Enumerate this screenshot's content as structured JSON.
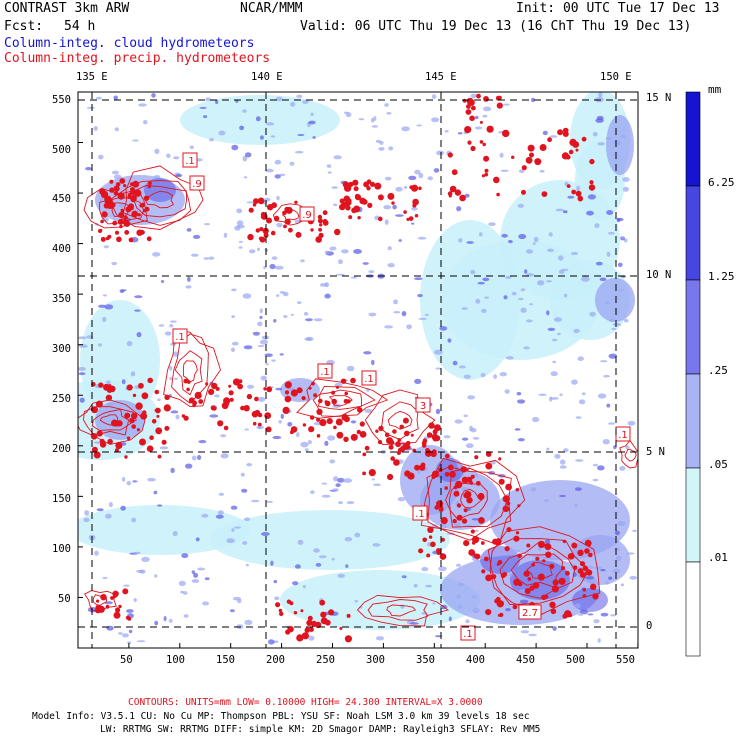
{
  "header": {
    "title": "CONTRAST  3km ARW",
    "org": "NCAR/MMM",
    "init": "Init: 00 UTC Tue 17 Dec 13",
    "fcst_label": "Fcst:",
    "fcst_value": "54 h",
    "valid": "Valid: 06 UTC Thu 19 Dec 13 (16 ChT Thu 19 Dec 13)",
    "legend_cloud": "Column-integ. cloud hydrometeors",
    "legend_precip": "Column-integ. precip. hydrometeors"
  },
  "map": {
    "lon_labels": [
      "135 E",
      "140 E",
      "145 E",
      "150 E"
    ],
    "lat_labels": [
      "15 N",
      "10 N",
      "5 N",
      "0"
    ],
    "x_ticks": [
      "50",
      "100",
      "150",
      "200",
      "250",
      "300",
      "350",
      "400",
      "450",
      "500",
      "550"
    ],
    "y_ticks": [
      "550",
      "500",
      "450",
      "400",
      "350",
      "300",
      "250",
      "200",
      "150",
      "100",
      "50"
    ],
    "contour_labels": [
      ".1",
      ".9",
      ".9",
      ".1",
      ".1",
      ".1",
      "3",
      ".1",
      ".1",
      "2.7",
      ".1"
    ],
    "colors": {
      "fill_light": "#c8f0fa",
      "fill_mid": "#9aa6f2",
      "fill_dark": "#5a5ae6",
      "contour": "#e0141e"
    }
  },
  "colorbar": {
    "unit": "mm",
    "levels": [
      "6.25",
      "1.25",
      ".25",
      ".05",
      ".01"
    ],
    "colors": [
      "#1414d2",
      "#4646e1",
      "#7878ec",
      "#aab4f5",
      "#d2f5fa",
      "#ffffff"
    ]
  },
  "footer": {
    "contours": "CONTOURS:  UNITS=mm  LOW= 0.10000      HIGH=  24.300      INTERVAL=X  3.0000",
    "model_line1": "Model Info: V3.5.1     CU: No Cu    MP: Thompson    PBL: YSU      SF: Noah LSM     3.0 km   39 levels   18 sec",
    "model_line2": "LW: RRTMG    SW: RRTMG   DIFF: simple KM: 2D Smagor DAMP: Rayleigh3  SFLAY: Rev MM5"
  }
}
